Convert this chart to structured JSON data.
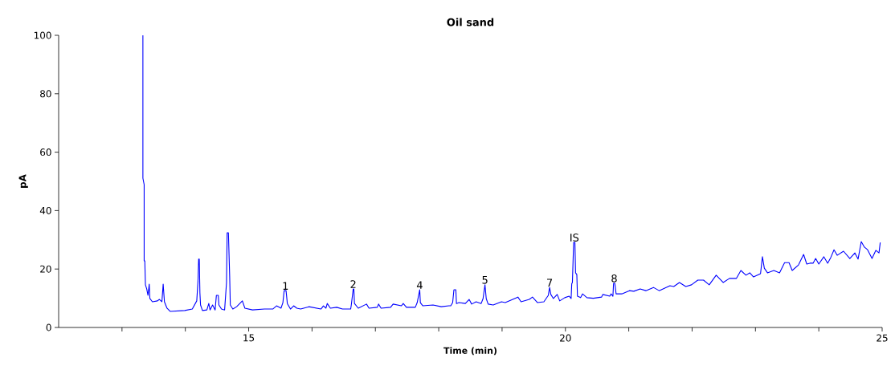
{
  "chart_data": {
    "type": "line",
    "title": "Oil sand",
    "xlabel": "Time (min)",
    "ylabel": "pA",
    "xlim": [
      12,
      25
    ],
    "ylim": [
      0,
      100
    ],
    "xticks": [
      {
        "value": 13,
        "label": null
      },
      {
        "value": 14,
        "label": null
      },
      15,
      {
        "value": 16,
        "label": null
      },
      {
        "value": 17,
        "label": null
      },
      {
        "value": 18,
        "label": null
      },
      {
        "value": 19,
        "label": null
      },
      20,
      {
        "value": 21,
        "label": null
      },
      {
        "value": 22,
        "label": null
      },
      {
        "value": 23,
        "label": null
      },
      {
        "value": 24,
        "label": null
      },
      25
    ],
    "yticks": [
      0,
      20,
      40,
      60,
      80,
      100
    ],
    "annotations": [
      {
        "text": "1",
        "x": 15.58,
        "y": 12.6
      },
      {
        "text": "2",
        "x": 16.65,
        "y": 13.2
      },
      {
        "text": "4",
        "x": 17.7,
        "y": 12.9
      },
      {
        "text": "5",
        "x": 18.73,
        "y": 14.6
      },
      {
        "text": "7",
        "x": 19.75,
        "y": 13.7
      },
      {
        "text": "IS",
        "x": 20.14,
        "y": 29.1
      },
      {
        "text": "8",
        "x": 20.77,
        "y": 15.1
      }
    ],
    "series": [
      {
        "color": "#0000ff",
        "x": [
          13.33,
          13.33,
          13.35,
          13.35,
          13.36,
          13.37,
          13.39,
          13.41,
          13.43,
          13.44,
          13.48,
          13.56,
          13.59,
          13.63,
          13.65,
          13.67,
          13.71,
          13.76,
          13.99,
          14.11,
          14.18,
          14.2,
          14.21,
          14.22,
          14.23,
          14.24,
          14.27,
          14.34,
          14.37,
          14.39,
          14.43,
          14.47,
          14.49,
          14.52,
          14.53,
          14.57,
          14.62,
          14.65,
          14.66,
          14.68,
          14.7,
          14.71,
          14.75,
          14.81,
          14.9,
          14.94,
          15.06,
          15.25,
          15.38,
          15.44,
          15.51,
          15.54,
          15.56,
          15.59,
          15.61,
          15.66,
          15.71,
          15.76,
          15.82,
          15.95,
          16.14,
          16.18,
          16.22,
          16.24,
          16.29,
          16.39,
          16.48,
          16.61,
          16.62,
          16.65,
          16.66,
          16.67,
          16.73,
          16.86,
          16.9,
          17.03,
          17.05,
          17.09,
          17.24,
          17.28,
          17.41,
          17.44,
          17.49,
          17.63,
          17.66,
          17.7,
          17.71,
          17.75,
          17.91,
          18.04,
          18.16,
          18.19,
          18.22,
          18.24,
          18.27,
          18.28,
          18.32,
          18.42,
          18.48,
          18.52,
          18.59,
          18.67,
          18.7,
          18.73,
          18.75,
          18.78,
          18.86,
          18.99,
          19.05,
          19.25,
          19.3,
          19.43,
          19.48,
          19.56,
          19.66,
          19.73,
          19.75,
          19.77,
          19.81,
          19.87,
          19.91,
          19.99,
          20.06,
          20.09,
          20.1,
          20.11,
          20.13,
          20.15,
          20.16,
          20.18,
          20.19,
          20.24,
          20.27,
          20.34,
          20.44,
          20.57,
          20.59,
          20.7,
          20.72,
          20.75,
          20.76,
          20.78,
          20.8,
          20.89,
          21.01,
          21.08,
          21.18,
          21.27,
          21.39,
          21.48,
          21.65,
          21.71,
          21.8,
          21.9,
          21.99,
          22.09,
          22.18,
          22.27,
          22.38,
          22.49,
          22.59,
          22.7,
          22.77,
          22.85,
          22.91,
          22.97,
          23.08,
          23.11,
          23.14,
          23.19,
          23.29,
          23.38,
          23.46,
          23.53,
          23.58,
          23.68,
          23.76,
          23.81,
          23.86,
          23.91,
          23.95,
          24.0,
          24.08,
          24.14,
          24.19,
          24.24,
          24.29,
          24.39,
          24.49,
          24.57,
          24.62,
          24.67,
          24.72,
          24.77,
          24.84,
          24.9,
          24.95,
          24.97
        ],
        "values": [
          100,
          51.1,
          48.9,
          22.8,
          22.8,
          14.6,
          13.2,
          11.0,
          14.8,
          9.9,
          8.8,
          9.1,
          9.6,
          8.8,
          14.8,
          8.8,
          6.6,
          5.5,
          5.8,
          6.3,
          9.1,
          15.9,
          23.4,
          23.4,
          11.8,
          7.7,
          5.8,
          6.0,
          8.2,
          6.0,
          7.7,
          6.0,
          11.0,
          11.0,
          7.7,
          6.3,
          6.0,
          15.4,
          32.4,
          32.4,
          17.3,
          7.7,
          6.3,
          7.1,
          9.1,
          6.6,
          6.0,
          6.3,
          6.3,
          7.4,
          6.6,
          8.5,
          12.6,
          12.6,
          8.2,
          6.3,
          7.4,
          6.6,
          6.3,
          7.1,
          6.3,
          7.4,
          6.6,
          8.2,
          6.6,
          6.9,
          6.3,
          6.3,
          7.7,
          13.2,
          13.2,
          8.2,
          6.6,
          8.0,
          6.6,
          6.9,
          8.0,
          6.6,
          6.9,
          8.0,
          7.4,
          8.2,
          6.9,
          6.9,
          8.5,
          12.9,
          8.5,
          7.4,
          7.7,
          7.1,
          7.4,
          7.4,
          8.5,
          12.9,
          12.9,
          8.2,
          8.5,
          8.2,
          9.6,
          8.0,
          8.8,
          8.2,
          9.9,
          14.6,
          9.9,
          8.0,
          7.7,
          8.8,
          8.5,
          10.4,
          8.8,
          9.6,
          10.4,
          8.5,
          8.8,
          11.0,
          13.7,
          11.3,
          9.9,
          11.3,
          9.1,
          10.2,
          10.7,
          9.9,
          15.0,
          15.4,
          29.1,
          29.1,
          18.7,
          18.1,
          10.7,
          10.2,
          11.5,
          10.2,
          10.0,
          10.4,
          11.3,
          10.7,
          11.5,
          10.7,
          15.1,
          15.1,
          11.5,
          11.5,
          12.6,
          12.4,
          13.2,
          12.6,
          13.7,
          12.6,
          14.3,
          14.0,
          15.4,
          14.0,
          14.6,
          16.2,
          16.2,
          14.6,
          17.9,
          15.4,
          16.8,
          16.8,
          19.5,
          17.9,
          18.7,
          17.3,
          18.4,
          24.2,
          20.3,
          18.7,
          19.5,
          18.7,
          22.2,
          22.2,
          19.5,
          21.4,
          25.0,
          21.7,
          22.0,
          22.0,
          23.6,
          21.7,
          24.2,
          22.0,
          24.0,
          26.6,
          24.7,
          26.1,
          23.6,
          25.5,
          23.4,
          29.4,
          27.5,
          26.6,
          23.6,
          26.4,
          25.5,
          29.1
        ]
      }
    ]
  }
}
